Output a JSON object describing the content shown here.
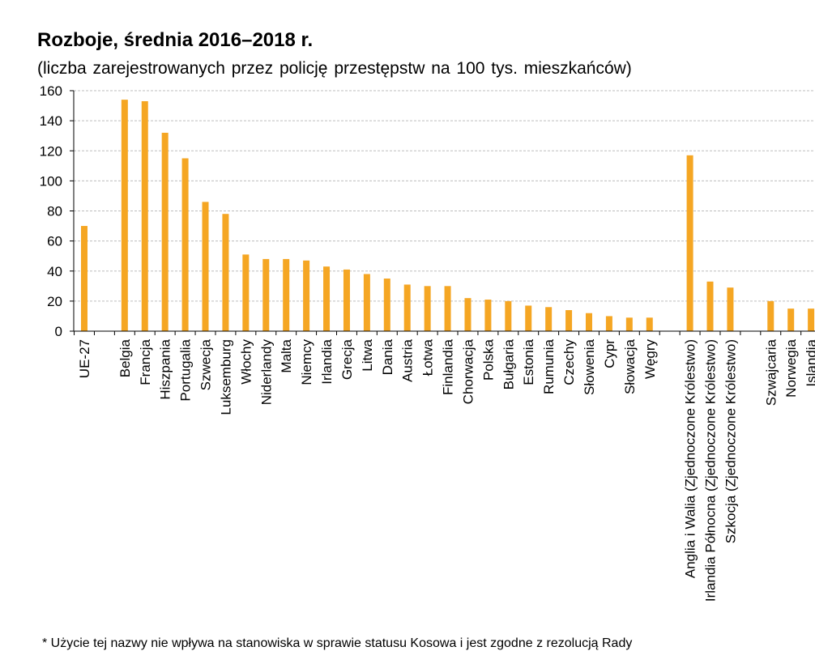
{
  "chart_data": {
    "type": "bar",
    "title": "Rozboje, średnia 2016–2018 r.",
    "subtitle": "(liczba zarejestrowanych przez policję przestępstw na 100 tys. mieszkańców)",
    "xlabel": "",
    "ylabel": "",
    "ylim": [
      0,
      160
    ],
    "yticks": [
      0,
      20,
      40,
      60,
      80,
      100,
      120,
      140,
      160
    ],
    "grid": true,
    "bar_color": "#F5A623",
    "categories": [
      "UE-27",
      "",
      "Belgia",
      "Francja",
      "Hiszpania",
      "Portugalia",
      "Szwecja",
      "Luksemburg",
      "Włochy",
      "Niderlandy",
      "Malta",
      "Niemcy",
      "Irlandia",
      "Grecja",
      "Litwa",
      "Dania",
      "Austria",
      "Łotwa",
      "Finlandia",
      "Chorwacja",
      "Polska",
      "Bułgaria",
      "Estonia",
      "Rumunia",
      "Czechy",
      "Słowenia",
      "Cypr",
      "Słowacja",
      "Węgry",
      "",
      "Anglia i Walia (Zjednoczone Królestwo)",
      "Irlandia Północna (Zjednoczone Królestwo)",
      "Szkocja (Zjednoczone Królestwo)",
      "",
      "Szwajcaria",
      "Norwegia",
      "Islandia"
    ],
    "values": [
      70,
      null,
      154,
      153,
      132,
      115,
      86,
      78,
      51,
      48,
      48,
      47,
      43,
      41,
      38,
      35,
      31,
      30,
      30,
      22,
      21,
      20,
      17,
      16,
      14,
      12,
      10,
      9,
      9,
      null,
      117,
      33,
      29,
      null,
      20,
      15,
      15
    ]
  },
  "footnote": "* Użycie tej nazwy nie wpływa na stanowiska w sprawie statusu Kosowa i jest zgodne z rezolucją Rady"
}
